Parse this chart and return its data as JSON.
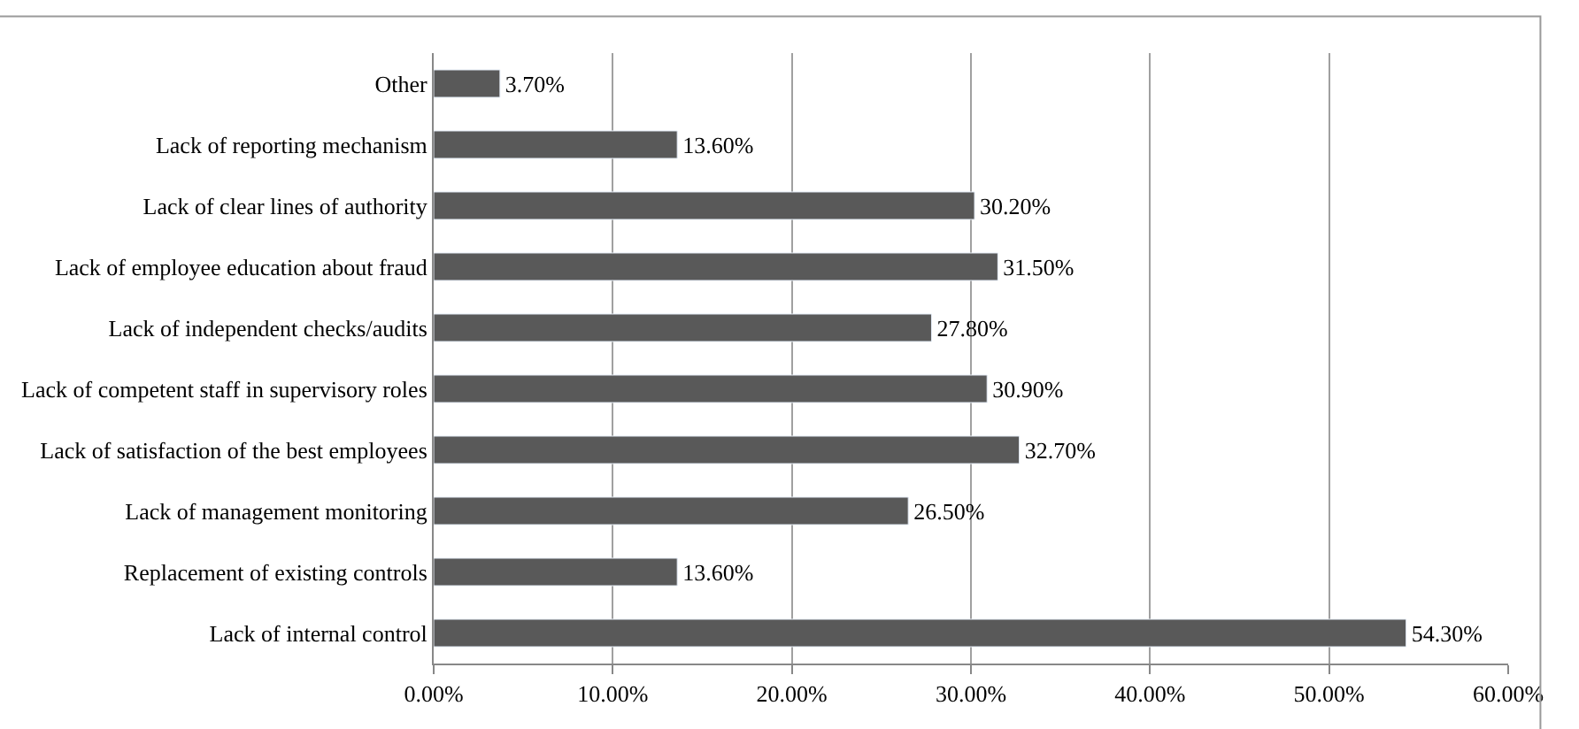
{
  "chart_data": {
    "type": "bar",
    "orientation": "horizontal",
    "categories": [
      "Other",
      "Lack of reporting mechanism",
      "Lack of clear lines of authority",
      "Lack of employee education about fraud",
      "Lack of independent checks/audits",
      "Lack of competent staff in supervisory roles",
      "Lack of satisfaction of the best employees",
      "Lack of management monitoring",
      "Replacement of existing controls",
      "Lack of internal control"
    ],
    "values": [
      3.7,
      13.6,
      30.2,
      31.5,
      27.8,
      30.9,
      32.7,
      26.5,
      13.6,
      54.3
    ],
    "value_labels": [
      "3.70%",
      "13.60%",
      "30.20%",
      "31.50%",
      "27.80%",
      "30.90%",
      "32.70%",
      "26.50%",
      "13.60%",
      "54.30%"
    ],
    "color": "#595959",
    "xlim": [
      0,
      60
    ],
    "xticks": [
      {
        "value": 0,
        "label": "0.00%"
      },
      {
        "value": 10,
        "label": "10.00%"
      },
      {
        "value": 20,
        "label": "20.00%"
      },
      {
        "value": 30,
        "label": "30.00%"
      },
      {
        "value": 40,
        "label": "40.00%"
      },
      {
        "value": 50,
        "label": "50.00%"
      },
      {
        "value": 60,
        "label": "60.00%"
      }
    ],
    "grid": "x",
    "legend": false
  }
}
